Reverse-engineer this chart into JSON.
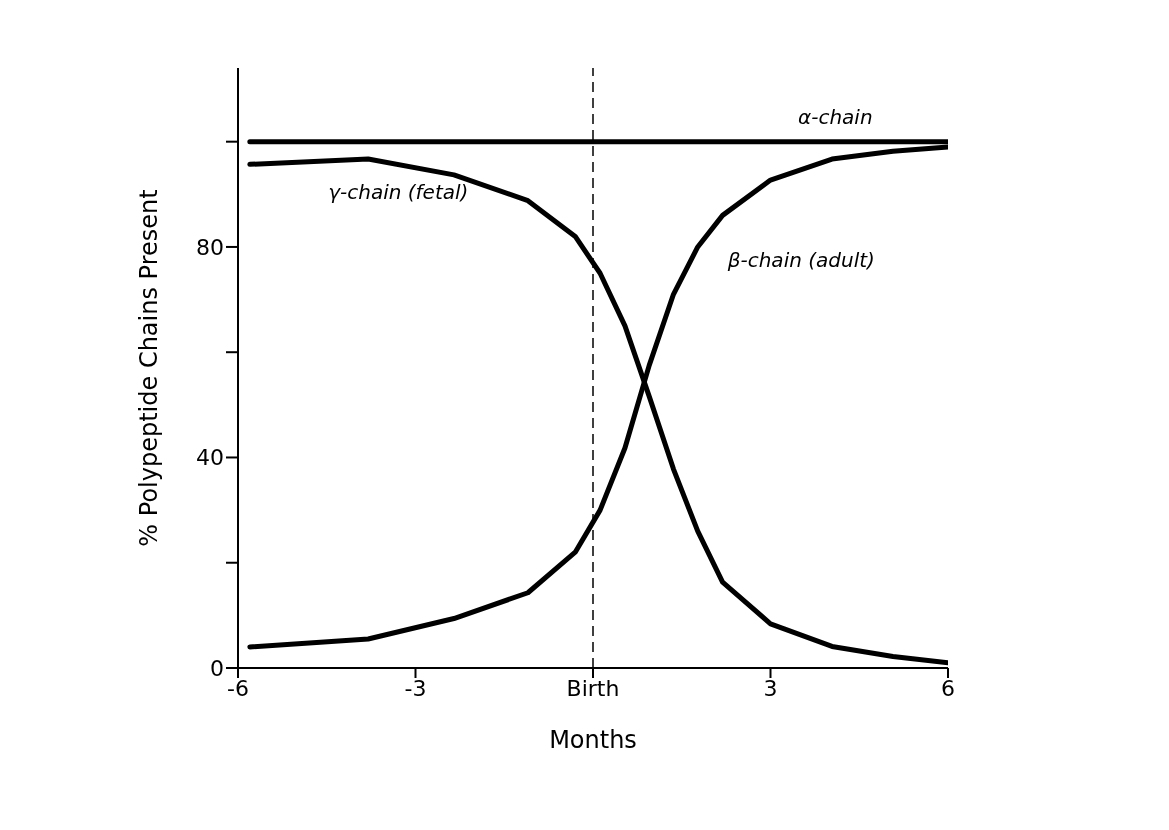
{
  "chart_data": {
    "type": "line",
    "xlabel": "Months",
    "ylabel": "% Polypeptide Chains Present",
    "xlim": [
      -6,
      6
    ],
    "xticks": [
      -6,
      -3,
      {
        "value": 0,
        "label": "Birth"
      },
      3,
      6
    ],
    "ylim": [
      0,
      114
    ],
    "yticks": [
      0,
      {
        "value": 20,
        "label": null
      },
      40,
      {
        "value": 60,
        "label": null
      },
      80,
      {
        "value": 100,
        "label": null
      }
    ],
    "marker": "none",
    "line_style": "solid",
    "ref_lines": [
      {
        "axis": "x",
        "value": 0,
        "label": null,
        "color": "#000000",
        "line_style": "dashed"
      }
    ],
    "series": [
      {
        "name": "α-chain",
        "color": "#000000",
        "x": [
          -5.8,
          6
        ],
        "values": [
          100,
          100
        ]
      },
      {
        "name": "γ-chain (fetal)",
        "color": "#000000",
        "x": [
          -5.8,
          -3.8,
          -2.35,
          -1.1,
          -0.3,
          0.12,
          0.54,
          0.95,
          1.36,
          1.77,
          2.19,
          3.0,
          4.04,
          5.07,
          6
        ],
        "values": [
          95.7,
          96.7,
          93.7,
          88.8,
          82,
          75,
          65,
          51.6,
          37.8,
          26,
          16.3,
          8.4,
          4.1,
          2.2,
          1
        ]
      },
      {
        "name": "β-chain (adult)",
        "color": "#000000",
        "x": [
          -5.8,
          -3.8,
          -2.35,
          -1.1,
          -0.3,
          0.12,
          0.54,
          0.95,
          1.36,
          1.77,
          2.19,
          3.0,
          4.04,
          5.07,
          6
        ],
        "values": [
          4,
          5.5,
          9.4,
          14.3,
          22,
          30,
          41.8,
          57.5,
          71,
          80,
          86,
          92.7,
          96.7,
          98.2,
          99
        ]
      }
    ]
  }
}
